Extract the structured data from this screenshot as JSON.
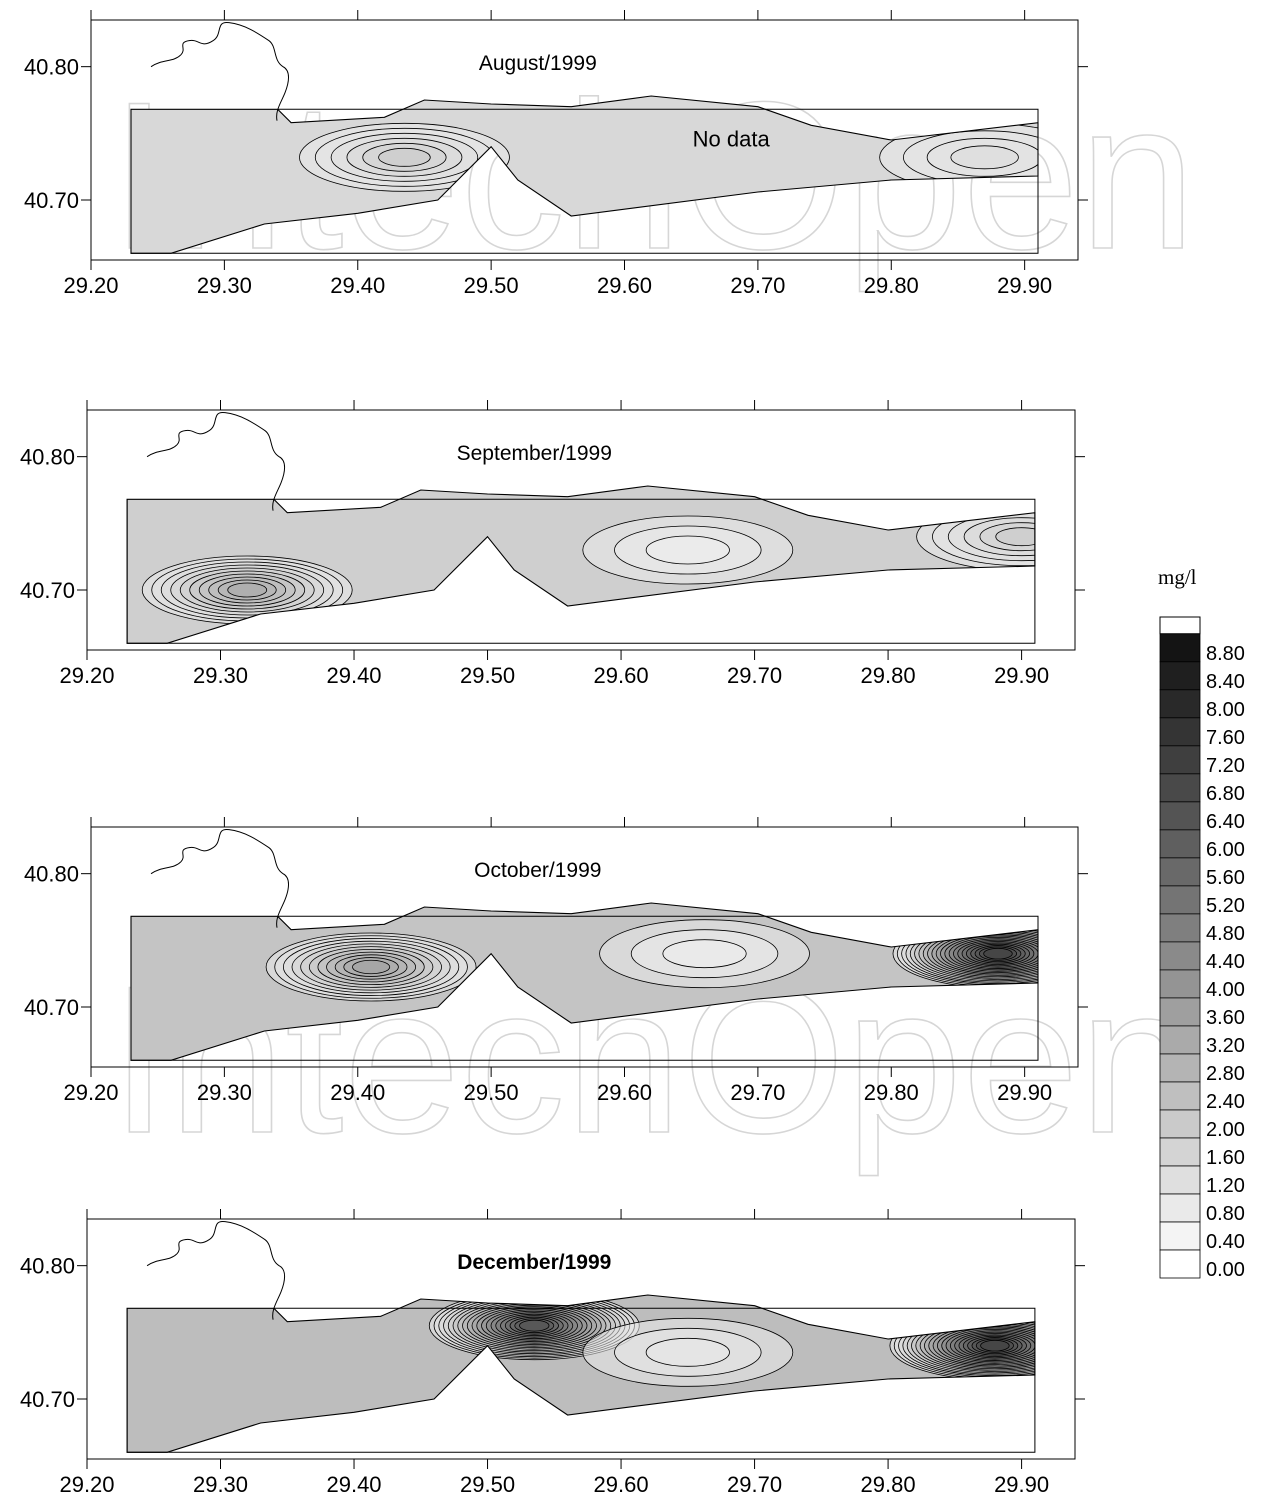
{
  "chart_data": [
    {
      "type": "contour",
      "title": "August/1999",
      "title_bold": false,
      "annotation": "No data",
      "x_ticks": [
        "29.20",
        "29.30",
        "29.40",
        "29.50",
        "29.60",
        "29.70",
        "29.80",
        "29.90"
      ],
      "y_ticks": [
        "40.80",
        "40.70"
      ],
      "xlim": [
        29.2,
        29.94
      ],
      "ylim": [
        40.655,
        40.835
      ],
      "fill": "#d8d8d8",
      "hotspots": [
        {
          "x": 29.435,
          "y": 40.732,
          "value": 2.4
        },
        {
          "x": 29.87,
          "y": 40.732,
          "value": 1.6
        }
      ]
    },
    {
      "type": "contour",
      "title": "September/1999",
      "title_bold": false,
      "annotation": "",
      "x_ticks": [
        "29.20",
        "29.30",
        "29.40",
        "29.50",
        "29.60",
        "29.70",
        "29.80",
        "29.90"
      ],
      "y_ticks": [
        "40.80",
        "40.70"
      ],
      "xlim": [
        29.2,
        29.94
      ],
      "ylim": [
        40.655,
        40.835
      ],
      "fill": "#cfcfcf",
      "hotspots": [
        {
          "x": 29.32,
          "y": 40.7,
          "value": 4.0
        },
        {
          "x": 29.65,
          "y": 40.73,
          "value": 0.4
        },
        {
          "x": 29.9,
          "y": 40.74,
          "value": 2.4
        }
      ]
    },
    {
      "type": "contour",
      "title": "October/1999",
      "title_bold": false,
      "annotation": "",
      "x_ticks": [
        "29.20",
        "29.30",
        "29.40",
        "29.50",
        "29.60",
        "29.70",
        "29.80",
        "29.90"
      ],
      "y_ticks": [
        "40.80",
        "40.70"
      ],
      "xlim": [
        29.2,
        29.94
      ],
      "ylim": [
        40.655,
        40.835
      ],
      "fill": "#c4c4c4",
      "hotspots": [
        {
          "x": 29.41,
          "y": 40.73,
          "value": 4.4
        },
        {
          "x": 29.66,
          "y": 40.74,
          "value": 0.4
        },
        {
          "x": 29.88,
          "y": 40.74,
          "value": 8.8
        }
      ]
    },
    {
      "type": "contour",
      "title": "December/1999",
      "title_bold": true,
      "annotation": "",
      "x_ticks": [
        "29.20",
        "29.30",
        "29.40",
        "29.50",
        "29.60",
        "29.70",
        "29.80",
        "29.90"
      ],
      "y_ticks": [
        "40.80",
        "40.70"
      ],
      "xlim": [
        29.2,
        29.94
      ],
      "ylim": [
        40.655,
        40.835
      ],
      "fill": "#bdbdbd",
      "hotspots": [
        {
          "x": 29.535,
          "y": 40.755,
          "value": 8.0
        },
        {
          "x": 29.65,
          "y": 40.735,
          "value": 0.8
        },
        {
          "x": 29.88,
          "y": 40.74,
          "value": 8.8
        }
      ]
    }
  ],
  "legend": {
    "unit": "mg/l",
    "levels": [
      "8.80",
      "8.40",
      "8.00",
      "7.60",
      "7.20",
      "6.80",
      "6.40",
      "6.00",
      "5.60",
      "5.20",
      "4.80",
      "4.40",
      "4.00",
      "3.60",
      "3.20",
      "2.80",
      "2.40",
      "2.00",
      "1.60",
      "1.20",
      "0.80",
      "0.40",
      "0.00"
    ]
  },
  "watermark": "IntechOpen"
}
